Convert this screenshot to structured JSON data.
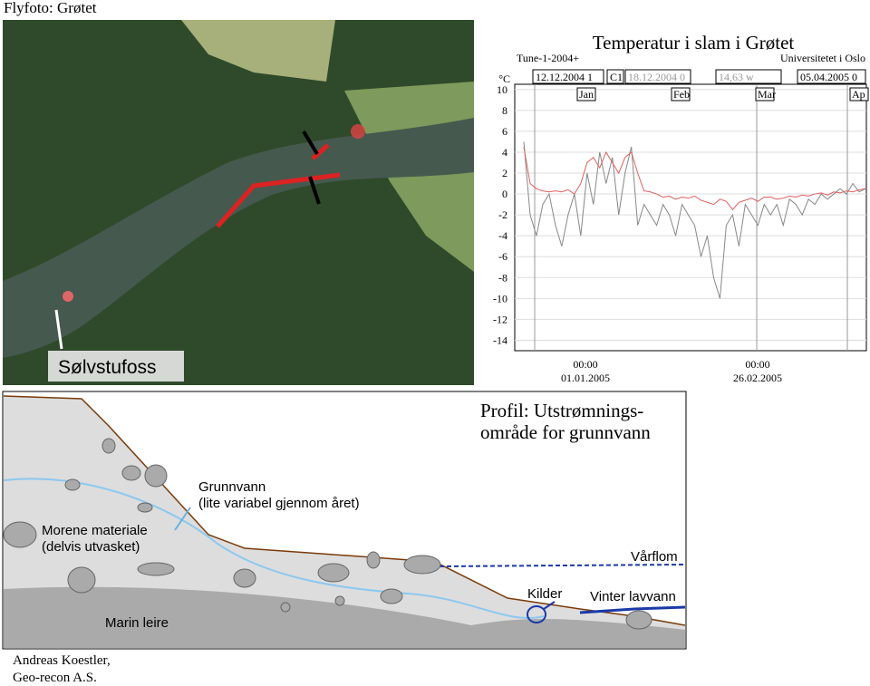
{
  "header": {
    "title": "Flyfoto: Grøtet"
  },
  "photo": {
    "label": "Sølvstufoss"
  },
  "chart_data": {
    "type": "line",
    "title": "Temperatur i slam i Grøtet",
    "source": "Tune-1-2004+",
    "institution": "Universitetet i Oslo",
    "toolbar": [
      "12.12.2004 1",
      "C1",
      "18.12.2004 0",
      "14,63 w",
      "05.04.2005 0"
    ],
    "y_unit": "°C",
    "months": [
      "Jan",
      "Feb",
      "Mar",
      "Ap"
    ],
    "x_labels": [
      {
        "time": "00:00",
        "date": "01.01.2005"
      },
      {
        "time": "00:00",
        "date": "26.02.2005"
      }
    ],
    "categories": [
      null,
      null,
      null,
      null,
      null,
      null,
      null,
      null,
      null,
      null,
      null,
      null,
      null,
      null,
      null,
      null,
      null,
      null,
      null,
      null,
      null,
      null,
      null,
      null,
      null,
      null,
      null,
      null,
      null,
      null,
      null,
      null,
      null,
      null,
      null,
      null,
      null,
      null,
      null,
      null,
      null,
      null,
      null,
      null,
      null,
      null,
      null,
      null,
      null,
      null,
      null,
      null,
      null,
      null,
      null
    ],
    "series": [
      {
        "color": "#888888",
        "values": [
          5,
          -2,
          -4,
          -1,
          0,
          -3,
          -5,
          -2,
          0,
          -4,
          2,
          -1,
          4,
          1,
          3.5,
          -2,
          2,
          4.5,
          -3,
          -1,
          -2,
          -3,
          -1,
          -2,
          -4,
          -1,
          -2,
          -3,
          -6,
          -4,
          -8,
          -10,
          -3,
          -2,
          -5,
          -1,
          -2,
          -3,
          -1,
          -2,
          -1,
          -3,
          -0.5,
          -1,
          -2,
          -0.5,
          -1,
          0,
          -0.5,
          0,
          0.5,
          0,
          1,
          0.2,
          0.5
        ]
      },
      {
        "color": "#e06060",
        "values": [
          4.5,
          1,
          0.5,
          0.3,
          0.2,
          0.3,
          0.2,
          0.4,
          0,
          1,
          3,
          3.5,
          2.5,
          4,
          3,
          2,
          3.5,
          4,
          2,
          0.3,
          0.2,
          0,
          -0.3,
          -0.2,
          -0.5,
          -0.3,
          -0.4,
          -0.2,
          -0.6,
          -0.8,
          -1,
          -0.5,
          -0.7,
          -1.5,
          -0.8,
          -0.6,
          -0.4,
          -0.7,
          -0.3,
          -0.3,
          -0.5,
          -0.4,
          -0.2,
          -0.3,
          -0.1,
          -0.2,
          0,
          0.1,
          -0.1,
          0.2,
          0.1,
          0.3,
          0.2,
          0.4,
          0.5
        ]
      }
    ],
    "ylim": [
      -15,
      10.5
    ],
    "yticks": [
      10,
      8,
      6,
      4,
      2,
      0,
      -2,
      -4,
      -6,
      -8,
      -10,
      -12,
      -14
    ],
    "grid": true
  },
  "profile": {
    "title_line1": "Profil: Utstrømnings-",
    "title_line2": "område for grunnvann",
    "groundwater": "Grunnvann",
    "groundwater_note": "(lite variabel gjennom året)",
    "moraine": "Morene materiale",
    "moraine_note": "(delvis utvasket)",
    "spring_flood": "Vårflom",
    "springs": "Kilder",
    "winter_low": "Vinter lavvann",
    "marine_clay": "Marin leire"
  },
  "credit": {
    "line1": "Andreas Koestler,",
    "line2": "Geo-recon A.S."
  }
}
